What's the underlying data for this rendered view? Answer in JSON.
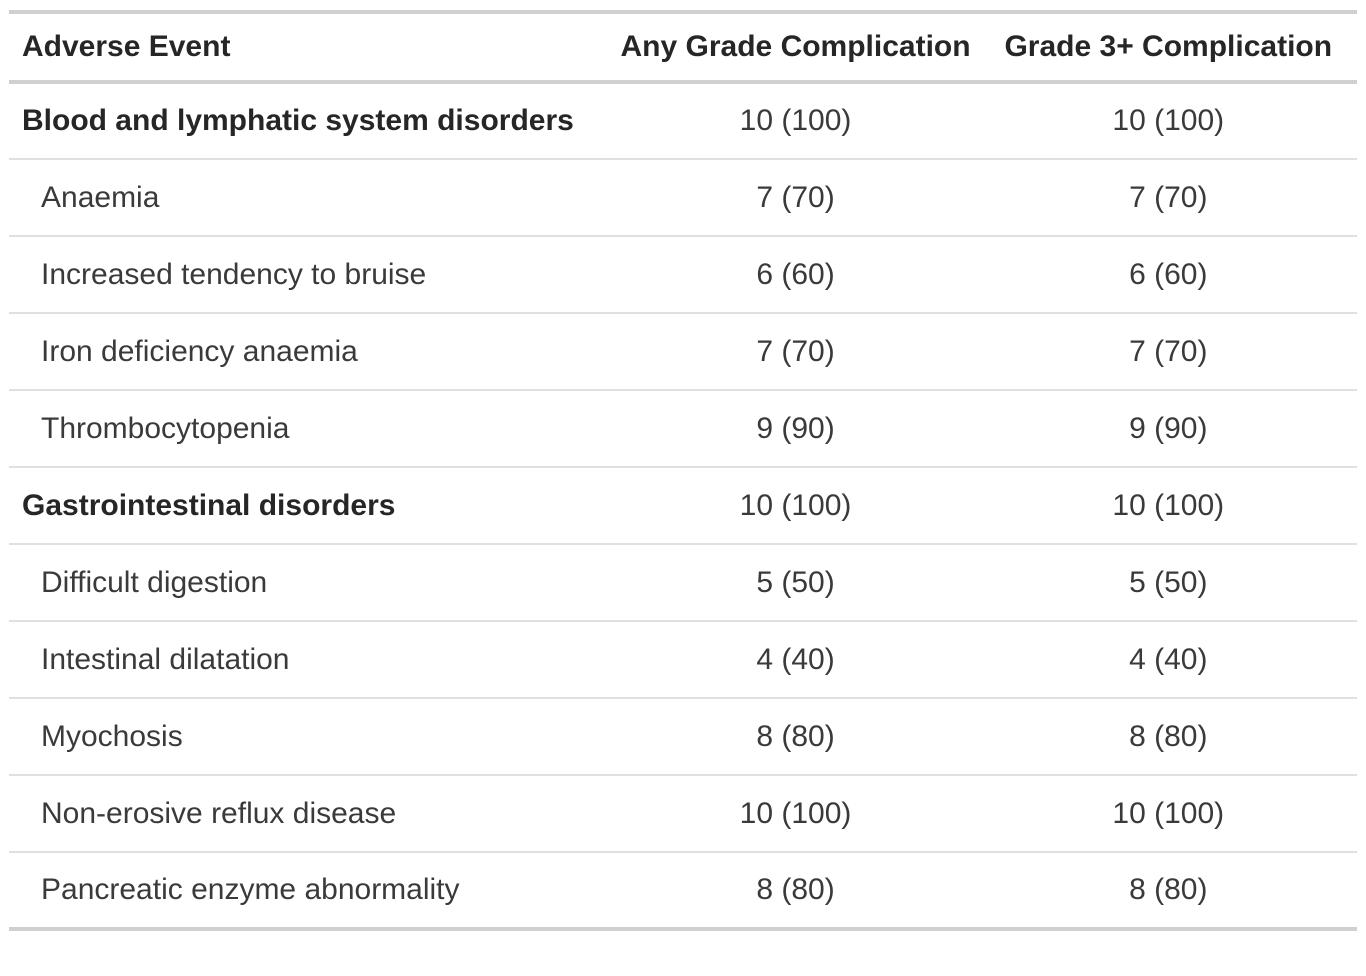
{
  "colors": {
    "text": "#3a3a3a",
    "heading_text": "#262626",
    "border_strong": "#d0d0d0",
    "border_light": "#e0e0e0",
    "background": "#ffffff"
  },
  "chart_data": {
    "type": "table",
    "title": "",
    "columns": [
      "Adverse Event",
      "Any Grade Complication",
      "Grade 3+ Complication"
    ],
    "rows": [
      {
        "label": "Blood and lymphatic system disorders",
        "is_group": true,
        "values": [
          "10 (100)",
          "10 (100)"
        ]
      },
      {
        "label": "Anaemia",
        "is_group": false,
        "values": [
          "7 (70)",
          "7 (70)"
        ]
      },
      {
        "label": "Increased tendency to bruise",
        "is_group": false,
        "values": [
          "6 (60)",
          "6 (60)"
        ]
      },
      {
        "label": "Iron deficiency anaemia",
        "is_group": false,
        "values": [
          "7 (70)",
          "7 (70)"
        ]
      },
      {
        "label": "Thrombocytopenia",
        "is_group": false,
        "values": [
          "9 (90)",
          "9 (90)"
        ]
      },
      {
        "label": "Gastrointestinal disorders",
        "is_group": true,
        "values": [
          "10 (100)",
          "10 (100)"
        ]
      },
      {
        "label": "Difficult digestion",
        "is_group": false,
        "values": [
          "5 (50)",
          "5 (50)"
        ]
      },
      {
        "label": "Intestinal dilatation",
        "is_group": false,
        "values": [
          "4 (40)",
          "4 (40)"
        ]
      },
      {
        "label": "Myochosis",
        "is_group": false,
        "values": [
          "8 (80)",
          "8 (80)"
        ]
      },
      {
        "label": "Non-erosive reflux disease",
        "is_group": false,
        "values": [
          "10 (100)",
          "10 (100)"
        ]
      },
      {
        "label": "Pancreatic enzyme abnormality",
        "is_group": false,
        "values": [
          "8 (80)",
          "8 (80)"
        ]
      }
    ]
  }
}
